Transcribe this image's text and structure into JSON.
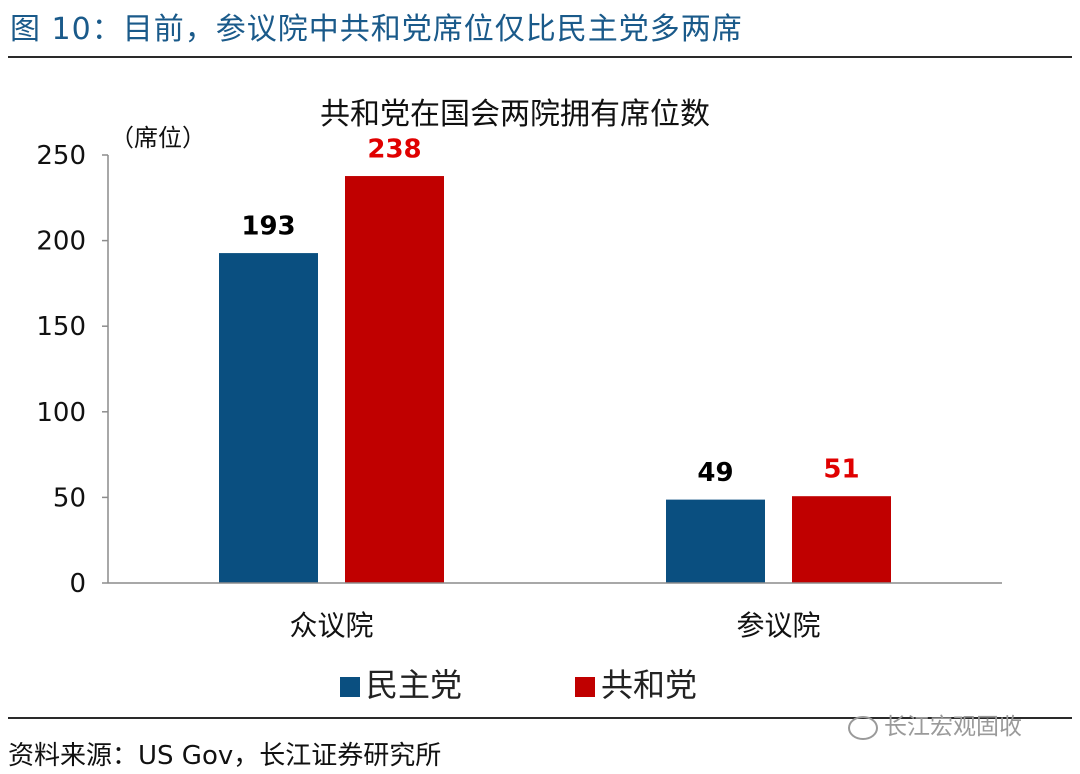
{
  "figure_title": "图 10：目前，参议院中共和党席位仅比民主党多两席",
  "source": "资料来源：US Gov，长江证券研究所",
  "watermark": "长江宏观固收",
  "colors": {
    "democrat": "#0a4f80",
    "republican": "#c00000",
    "title": "#1a5a8a"
  },
  "chart_data": {
    "type": "bar",
    "title": "共和党在国会两院拥有席位数",
    "ylabel": "（席位）",
    "categories": [
      "众议院",
      "参议院"
    ],
    "series": [
      {
        "name": "民主党",
        "values": [
          193,
          49
        ],
        "color": "#0a4f80",
        "label_color": "#000000"
      },
      {
        "name": "共和党",
        "values": [
          238,
          51
        ],
        "color": "#c00000",
        "label_color": "#e00000"
      }
    ],
    "ylim": [
      0,
      250
    ],
    "yticks": [
      0,
      50,
      100,
      150,
      200,
      250
    ],
    "grid": false,
    "legend_position": "bottom"
  }
}
